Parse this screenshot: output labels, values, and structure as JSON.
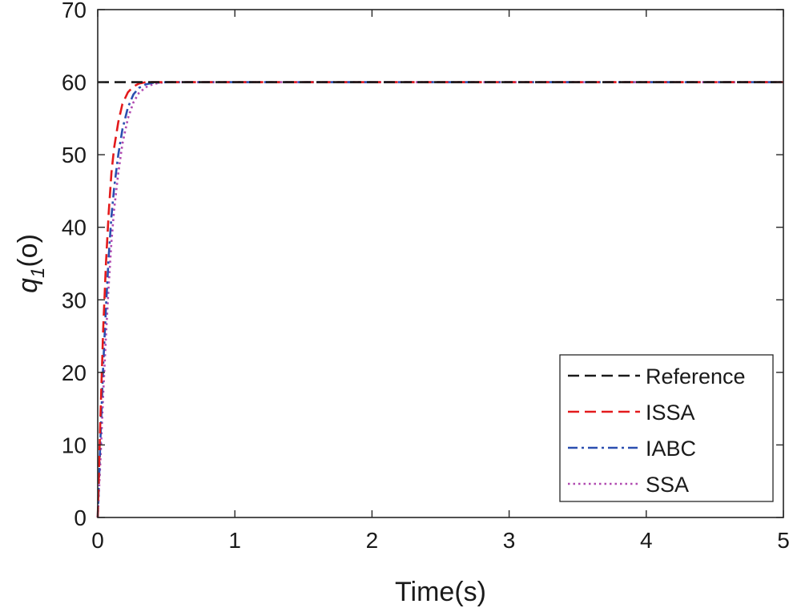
{
  "chart_data": {
    "type": "line",
    "title": "",
    "xlabel": "Time(s)",
    "ylabel_main": "q",
    "ylabel_sub": "1",
    "ylabel_unit": "(o)",
    "xlim": [
      0,
      5
    ],
    "ylim": [
      0,
      70
    ],
    "xticks": [
      "0",
      "1",
      "2",
      "3",
      "4",
      "5"
    ],
    "yticks": [
      "0",
      "10",
      "20",
      "30",
      "40",
      "50",
      "60",
      "70"
    ],
    "grid": false,
    "legend_position": "bottom-right",
    "series": [
      {
        "name": "Reference",
        "color": "#1a1a1a",
        "dash": "dashed",
        "x": [
          0.0,
          5.0
        ],
        "y": [
          60,
          60
        ]
      },
      {
        "name": "ISSA",
        "color": "#e31a1c",
        "dash": "dashed",
        "x": [
          0.0,
          0.02,
          0.04,
          0.06,
          0.08,
          0.1,
          0.12,
          0.15,
          0.18,
          0.22,
          0.26,
          0.3,
          0.35,
          0.45,
          0.6,
          1.0,
          2.0,
          3.0,
          4.0,
          5.0
        ],
        "y": [
          0,
          14,
          26,
          35,
          42,
          47.5,
          51,
          54.5,
          57,
          58.6,
          59.4,
          59.8,
          60,
          60,
          60,
          60,
          60,
          60,
          60,
          60
        ]
      },
      {
        "name": "IABC",
        "color": "#2b4fb0",
        "dash": "dashdot",
        "x": [
          0.0,
          0.02,
          0.04,
          0.06,
          0.08,
          0.1,
          0.12,
          0.15,
          0.18,
          0.22,
          0.26,
          0.3,
          0.35,
          0.4,
          0.5,
          0.6,
          1.0,
          2.0,
          3.0,
          4.0,
          5.0
        ],
        "y": [
          0,
          11,
          21,
          29,
          36,
          41.5,
          45.5,
          50,
          53.5,
          56.5,
          58.3,
          59.2,
          59.7,
          59.9,
          60,
          60,
          60,
          60,
          60,
          60,
          60
        ]
      },
      {
        "name": "SSA",
        "color": "#b04ab0",
        "dash": "dotted",
        "x": [
          0.0,
          0.02,
          0.04,
          0.06,
          0.08,
          0.1,
          0.12,
          0.15,
          0.18,
          0.22,
          0.26,
          0.3,
          0.35,
          0.4,
          0.45,
          0.5,
          0.6,
          1.0,
          2.0,
          3.0,
          4.0,
          5.0
        ],
        "y": [
          0,
          8,
          17,
          25,
          32,
          38,
          42.5,
          47.5,
          51.5,
          55,
          57.2,
          58.5,
          59.3,
          59.7,
          59.9,
          60,
          60,
          60,
          60,
          60,
          60,
          60
        ]
      }
    ]
  }
}
